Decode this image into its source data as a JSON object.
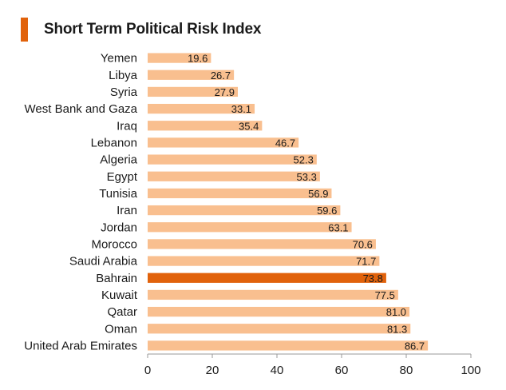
{
  "chart_data": {
    "type": "bar",
    "orientation": "horizontal",
    "title": "Short Term Political Risk Index",
    "categories": [
      "Yemen",
      "Libya",
      "Syria",
      "West Bank and Gaza",
      "Iraq",
      "Lebanon",
      "Algeria",
      "Egypt",
      "Tunisia",
      "Iran",
      "Jordan",
      "Morocco",
      "Saudi Arabia",
      "Bahrain",
      "Kuwait",
      "Qatar",
      "Oman",
      "United Arab Emirates"
    ],
    "values": [
      19.6,
      26.7,
      27.9,
      33.1,
      35.4,
      46.7,
      52.3,
      53.3,
      56.9,
      59.6,
      63.1,
      70.6,
      71.7,
      73.8,
      77.5,
      81.0,
      81.3,
      86.7
    ],
    "value_labels": [
      "19.6",
      "26.7",
      "27.9",
      "33.1",
      "35.4",
      "46.7",
      "52.3",
      "53.3",
      "56.9",
      "59.6",
      "63.1",
      "70.6",
      "71.7",
      "73.8",
      "77.5",
      "81.0",
      "81.3",
      "86.7"
    ],
    "highlight": "Bahrain",
    "xlim": [
      0,
      100
    ],
    "xticks": [
      0,
      20,
      40,
      60,
      80,
      100
    ],
    "xlabel": "",
    "ylabel": "",
    "grid": false,
    "colors": {
      "bar": "#f9bf8f",
      "highlight": "#e1620b",
      "accent": "#e1620b",
      "axis": "#9a9a9a"
    }
  }
}
